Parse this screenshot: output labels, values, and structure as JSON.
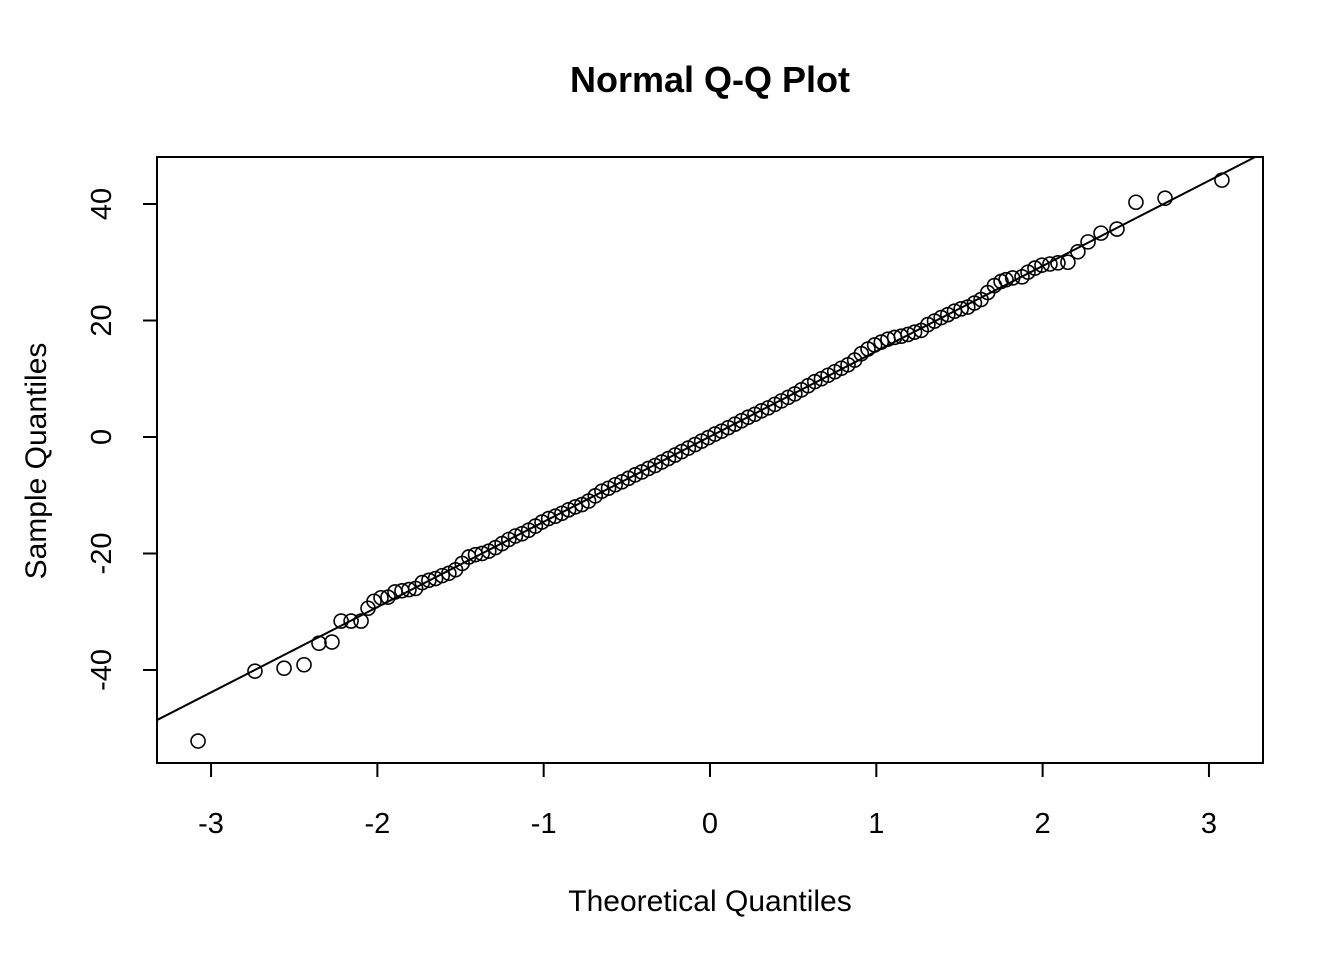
{
  "chart_data": {
    "type": "qq",
    "title": "Normal Q-Q Plot",
    "x_label": "Theoretical Quantiles",
    "y_label": "Sample Quantiles",
    "xlim": [
      -3.325,
      3.325
    ],
    "ylim": [
      -55.97,
      48.07
    ],
    "xticks": [
      -3,
      -2,
      -1,
      0,
      1,
      2,
      3
    ],
    "yticks": [
      -40,
      -20,
      0,
      20,
      40
    ],
    "color": "#000000",
    "reference_line": {
      "intercept": 0.08,
      "slope": 14.64
    },
    "x": [
      -3.078,
      -2.736,
      -2.561,
      -2.441,
      -2.351,
      -2.273,
      -2.218,
      -2.158,
      -2.098,
      -2.056,
      -2.02,
      -1.978,
      -1.936,
      -1.894,
      -1.852,
      -1.81,
      -1.77,
      -1.73,
      -1.69,
      -1.65,
      -1.61,
      -1.57,
      -1.53,
      -1.49,
      -1.45,
      -1.41,
      -1.37,
      -1.33,
      -1.29,
      -1.25,
      -1.21,
      -1.17,
      -1.13,
      -1.09,
      -1.05,
      -1.01,
      -0.97,
      -0.93,
      -0.89,
      -0.85,
      -0.81,
      -0.77,
      -0.73,
      -0.69,
      -0.65,
      -0.61,
      -0.57,
      -0.53,
      -0.49,
      -0.45,
      -0.41,
      -0.37,
      -0.33,
      -0.29,
      -0.25,
      -0.21,
      -0.17,
      -0.13,
      -0.09,
      -0.05,
      -0.01,
      0.03,
      0.07,
      0.11,
      0.15,
      0.19,
      0.23,
      0.27,
      0.31,
      0.35,
      0.39,
      0.43,
      0.47,
      0.51,
      0.55,
      0.59,
      0.63,
      0.67,
      0.71,
      0.75,
      0.79,
      0.83,
      0.87,
      0.91,
      0.95,
      0.99,
      1.03,
      1.07,
      1.11,
      1.15,
      1.19,
      1.23,
      1.27,
      1.31,
      1.35,
      1.39,
      1.43,
      1.47,
      1.51,
      1.55,
      1.59,
      1.63,
      1.67,
      1.71,
      1.75,
      1.78,
      1.82,
      1.876,
      1.912,
      1.954,
      1.996,
      2.044,
      2.092,
      2.152,
      2.212,
      2.273,
      2.351,
      2.447,
      2.561,
      2.736,
      3.078
    ],
    "y": [
      -52.2,
      -40.2,
      -39.7,
      -39.1,
      -35.4,
      -35.2,
      -31.6,
      -31.6,
      -31.6,
      -29.4,
      -28.2,
      -27.6,
      -27.5,
      -26.6,
      -26.4,
      -26.2,
      -26.0,
      -25.0,
      -24.6,
      -24.3,
      -23.8,
      -23.4,
      -22.8,
      -21.7,
      -20.6,
      -20.2,
      -20.0,
      -19.6,
      -19.0,
      -18.3,
      -17.6,
      -17.0,
      -16.6,
      -16.0,
      -15.3,
      -14.6,
      -14.0,
      -13.6,
      -13.1,
      -12.5,
      -12.0,
      -11.6,
      -11.0,
      -10.1,
      -9.3,
      -8.8,
      -8.2,
      -7.7,
      -7.1,
      -6.5,
      -6.0,
      -5.4,
      -4.9,
      -4.3,
      -3.7,
      -3.1,
      -2.5,
      -1.9,
      -1.3,
      -0.7,
      -0.1,
      0.5,
      1.0,
      1.6,
      2.2,
      2.8,
      3.4,
      3.9,
      4.5,
      5.0,
      5.6,
      6.2,
      6.8,
      7.4,
      8.1,
      8.8,
      9.5,
      10.0,
      10.6,
      11.2,
      11.8,
      12.4,
      13.2,
      14.3,
      15.1,
      15.8,
      16.3,
      16.8,
      17.1,
      17.3,
      17.6,
      18.0,
      18.3,
      19.3,
      19.9,
      20.5,
      21.0,
      21.6,
      22.0,
      22.3,
      23.0,
      23.6,
      24.8,
      26.0,
      26.7,
      27.0,
      27.3,
      27.5,
      28.3,
      29.0,
      29.5,
      29.7,
      29.9,
      30.0,
      31.8,
      33.5,
      35.0,
      35.7,
      40.3,
      41.0,
      44.1
    ]
  }
}
